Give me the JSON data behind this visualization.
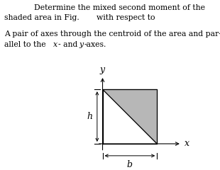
{
  "title_line1": "        Determine the mixed second moment of the",
  "title_line2_a": "shaded area in Fig.",
  "title_line2_b": "with respect to",
  "subtitle_line1": "A pair of axes through the centroid of the area and par-",
  "subtitle_line2_a": "allel to the ",
  "subtitle_line2_b": "x",
  "subtitle_line2_c": "- and ",
  "subtitle_line2_d": "y",
  "subtitle_line2_e": "-axes.",
  "background_color": "#ffffff",
  "shade_color": "#b0b0b0",
  "text_color": "#000000",
  "h_label": "h",
  "b_label": "b",
  "x_label": "x",
  "y_label": "y",
  "fontsize_text": 7.8,
  "fontsize_label": 8.5
}
